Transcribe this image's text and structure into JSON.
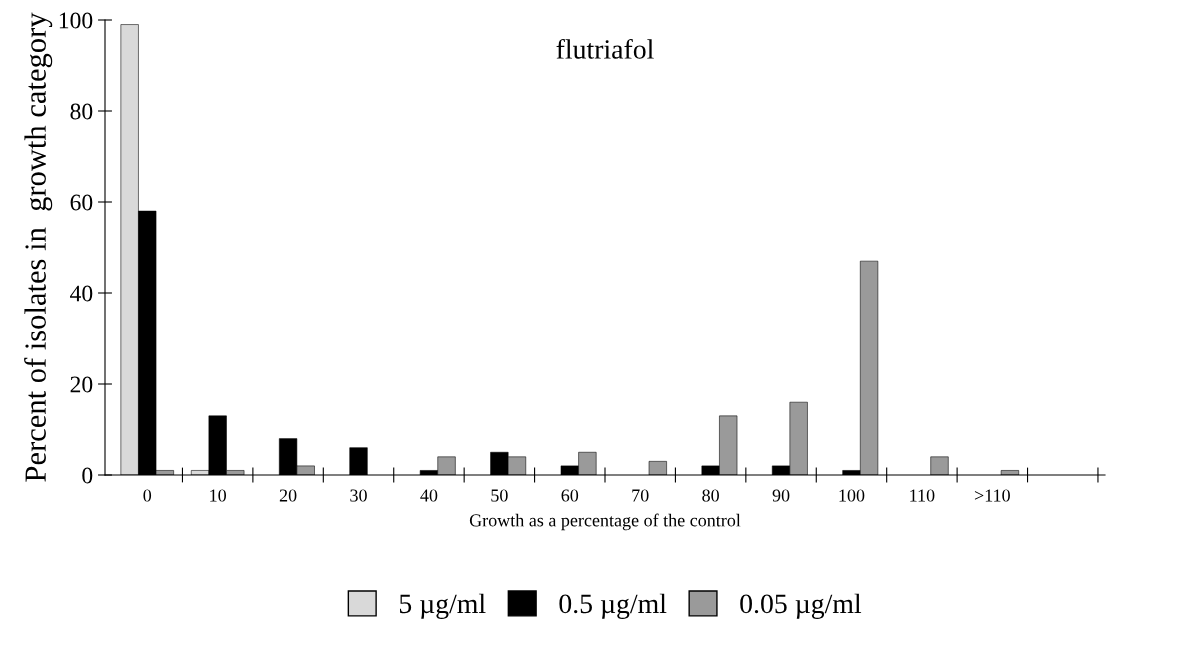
{
  "chart_data": {
    "type": "bar",
    "title": "flutriafol",
    "xlabel": "Growth as a percentage of the control",
    "ylabel": "Percent of isolates in  growth category",
    "categories": [
      "0",
      "10",
      "20",
      "30",
      "40",
      "50",
      "60",
      "70",
      "80",
      "90",
      "100",
      "110",
      ">110",
      null
    ],
    "series": [
      {
        "name": "5 µg/ml",
        "color": "#d9d9d9",
        "values": [
          99,
          1,
          0,
          0,
          0,
          0,
          0,
          0,
          0,
          0,
          0,
          0,
          0,
          0
        ]
      },
      {
        "name": "0.5 µg/ml",
        "color": "#000000",
        "values": [
          58,
          13,
          8,
          6,
          1,
          5,
          2,
          0,
          2,
          2,
          1,
          0,
          0,
          0
        ]
      },
      {
        "name": "0.05 µg/ml",
        "color": "#9a9a9a",
        "values": [
          1,
          1,
          2,
          0,
          4,
          4,
          5,
          3,
          13,
          16,
          47,
          4,
          1,
          0
        ]
      }
    ],
    "ylim": [
      0,
      100
    ],
    "yticks": [
      0,
      20,
      40,
      60,
      80,
      100
    ],
    "grid": false,
    "legend": "bottom"
  }
}
